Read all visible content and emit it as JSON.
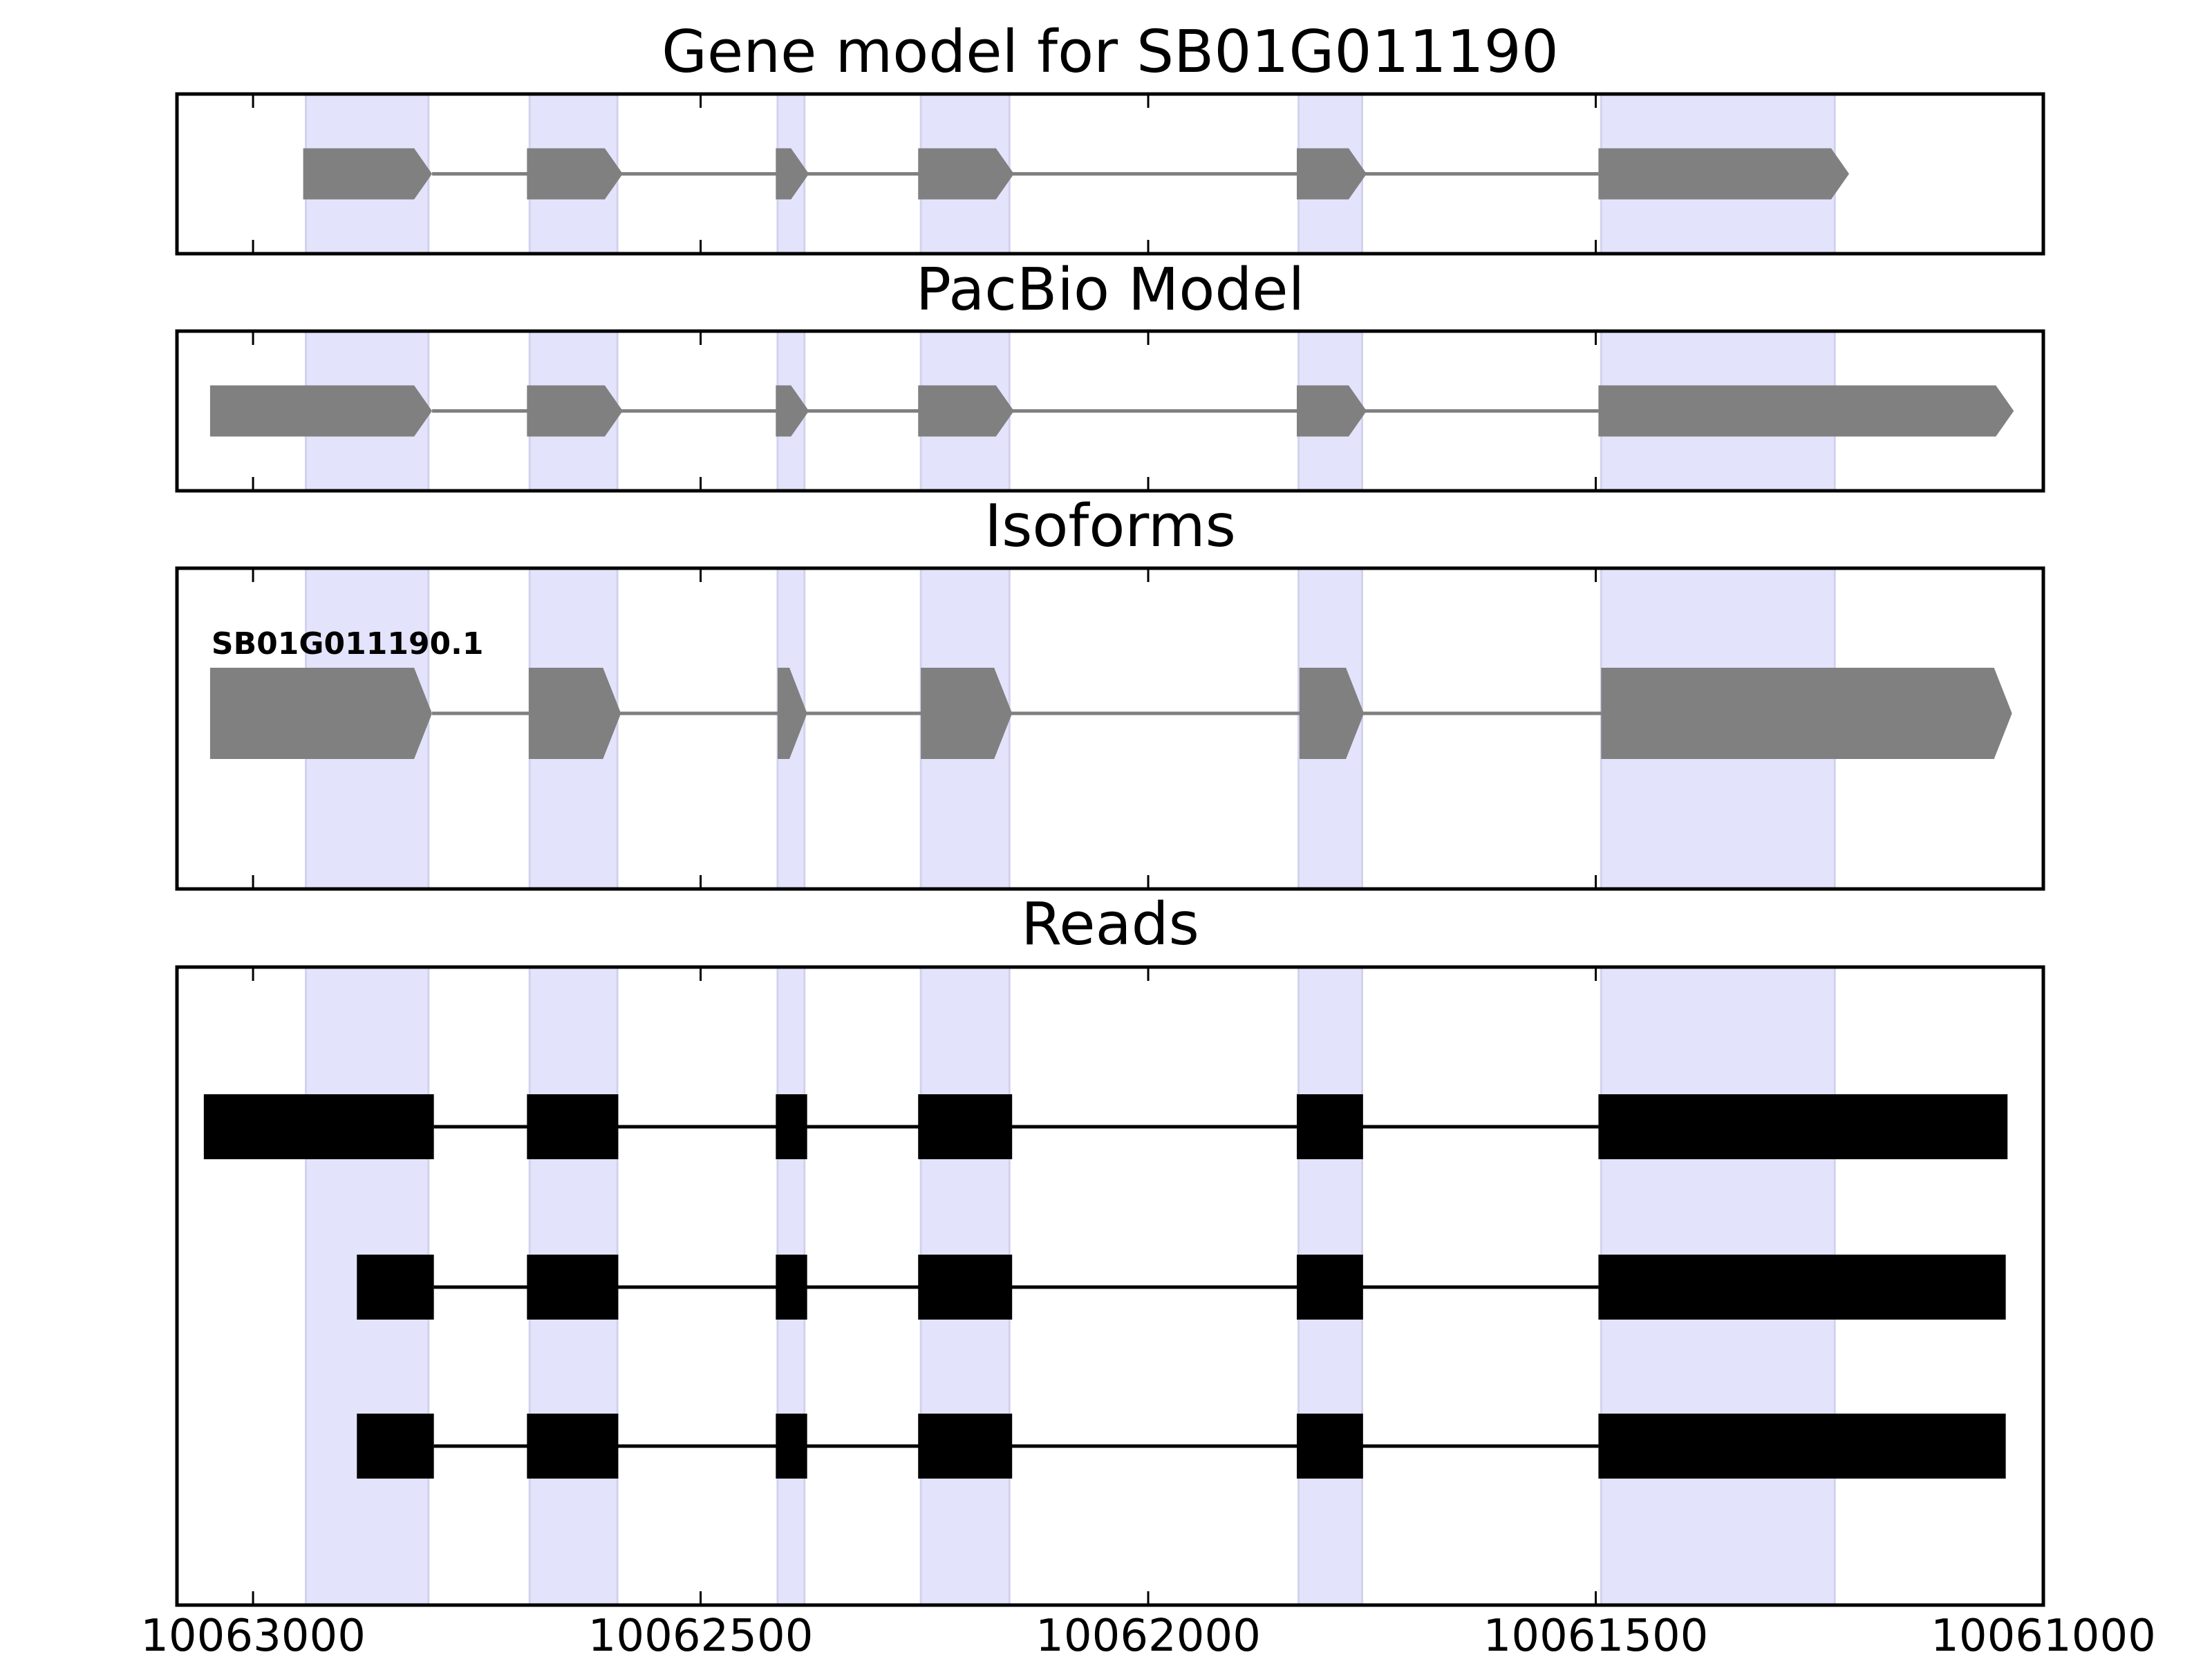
{
  "chart_data": {
    "type": "gene-model",
    "x_ticks": [
      "10063000",
      "10062500",
      "10062000",
      "10061500",
      "10061000"
    ],
    "xlim": [
      10063085,
      10061000
    ],
    "highlight_regions": [
      [
        10062941,
        10062804
      ],
      [
        10062691,
        10062593
      ],
      [
        10062414,
        10062384
      ],
      [
        10062254,
        10062155
      ],
      [
        10061832,
        10061761
      ],
      [
        10061494,
        10061233
      ]
    ],
    "panels": [
      {
        "title": "Gene model for SB01G011190",
        "kind": "model",
        "tracks": [
          {
            "label": "",
            "exons": [
              [
                10062944,
                10062800
              ],
              [
                10062694,
                10062587
              ],
              [
                10062416,
                10062379
              ],
              [
                10062257,
                10062150
              ],
              [
                10061834,
                10061756
              ],
              [
                10061497,
                10061217
              ]
            ]
          }
        ]
      },
      {
        "title": "PacBio Model",
        "kind": "model",
        "tracks": [
          {
            "label": "",
            "exons": [
              [
                10063048,
                10062800
              ],
              [
                10062694,
                10062587
              ],
              [
                10062416,
                10062379
              ],
              [
                10062257,
                10062150
              ],
              [
                10061834,
                10061756
              ],
              [
                10061497,
                10061033
              ]
            ]
          }
        ]
      },
      {
        "title": "Isoforms",
        "kind": "model",
        "tracks": [
          {
            "label": "SB01G011190.1",
            "exons": [
              [
                10063048,
                10062800
              ],
              [
                10062692,
                10062589
              ],
              [
                10062414,
                10062381
              ],
              [
                10062254,
                10062152
              ],
              [
                10061831,
                10061759
              ],
              [
                10061494,
                10061035
              ]
            ]
          }
        ]
      },
      {
        "title": "Reads",
        "kind": "reads",
        "tracks": [
          {
            "label": "",
            "exons": [
              [
                10063055,
                10062798
              ],
              [
                10062694,
                10062592
              ],
              [
                10062416,
                10062381
              ],
              [
                10062257,
                10062152
              ],
              [
                10061834,
                10061760
              ],
              [
                10061497,
                10061040
              ]
            ]
          },
          {
            "label": "",
            "exons": [
              [
                10062884,
                10062798
              ],
              [
                10062694,
                10062592
              ],
              [
                10062416,
                10062381
              ],
              [
                10062257,
                10062152
              ],
              [
                10061834,
                10061760
              ],
              [
                10061497,
                10061042
              ]
            ]
          },
          {
            "label": "",
            "exons": [
              [
                10062884,
                10062798
              ],
              [
                10062694,
                10062592
              ],
              [
                10062416,
                10062381
              ],
              [
                10062257,
                10062152
              ],
              [
                10061834,
                10061760
              ],
              [
                10061497,
                10061042
              ]
            ]
          }
        ]
      }
    ],
    "colors": {
      "highlight": "#e3e3fb",
      "highlight_edge": "#d2d2ee",
      "model_exon": "#808080",
      "model_intron": "#808080",
      "read_exon": "#000000",
      "read_intron": "#000000",
      "frame": "#000000"
    }
  }
}
